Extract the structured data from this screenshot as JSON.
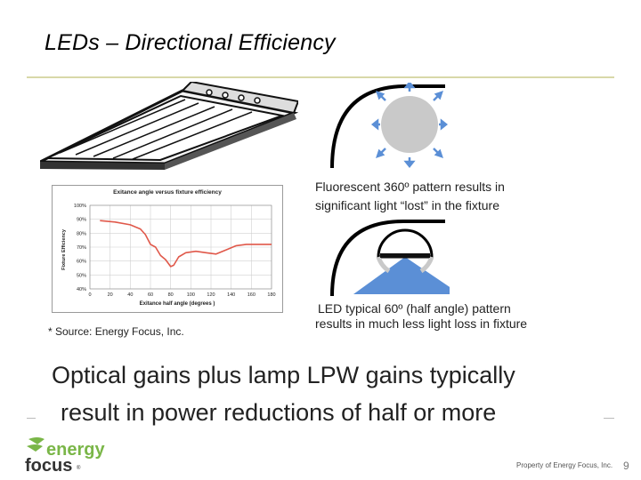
{
  "slide": {
    "title": "LEDs – Directional Efficiency",
    "source_note": "* Source:  Energy Focus, Inc.",
    "caption_fluorescent_line1": "Fluorescent 360º pattern results in",
    "caption_fluorescent_line2": "significant light “lost” in the fixture",
    "caption_led_line1": "LED typical 60º (half angle) pattern",
    "caption_led_line2": "results in much less light loss in fixture",
    "headline_line1": "Optical gains plus lamp LPW gains typically",
    "headline_line2": "result in power reductions of half or more",
    "footer": "Property of Energy Focus, Inc.",
    "page_number": "9",
    "logo_word1": "energy",
    "logo_word2": "focus"
  },
  "chart_data": {
    "type": "line",
    "title": "Exitance angle versus fixture efficiency",
    "xlabel": "Exitance half angle (degrees )",
    "ylabel": "Fixture Efficiency",
    "xlim": [
      0,
      180
    ],
    "ylim": [
      40,
      100
    ],
    "x_ticks": [
      0,
      20,
      40,
      60,
      80,
      100,
      120,
      140,
      160,
      180
    ],
    "y_ticks": [
      "40%",
      "50%",
      "60%",
      "70%",
      "80%",
      "90%",
      "100%"
    ],
    "grid": true,
    "series": [
      {
        "color": "#e0584a",
        "x": [
          10,
          25,
          40,
          50,
          55,
          60,
          65,
          70,
          75,
          80,
          83,
          88,
          95,
          105,
          115,
          125,
          135,
          145,
          155,
          165,
          180
        ],
        "y": [
          89,
          88,
          86,
          83,
          79,
          72,
          70,
          64,
          61,
          56,
          57,
          63,
          66,
          67,
          66,
          65,
          68,
          71,
          72,
          72,
          72
        ]
      }
    ]
  },
  "colors": {
    "title": "#000000",
    "rule": "#d8d8a8",
    "led_beam": "#5b8fd6",
    "arrows": "#5b8fd6",
    "bulb": "#c9c9c9",
    "logo_green": "#7ab648",
    "logo_dark": "#333333"
  }
}
